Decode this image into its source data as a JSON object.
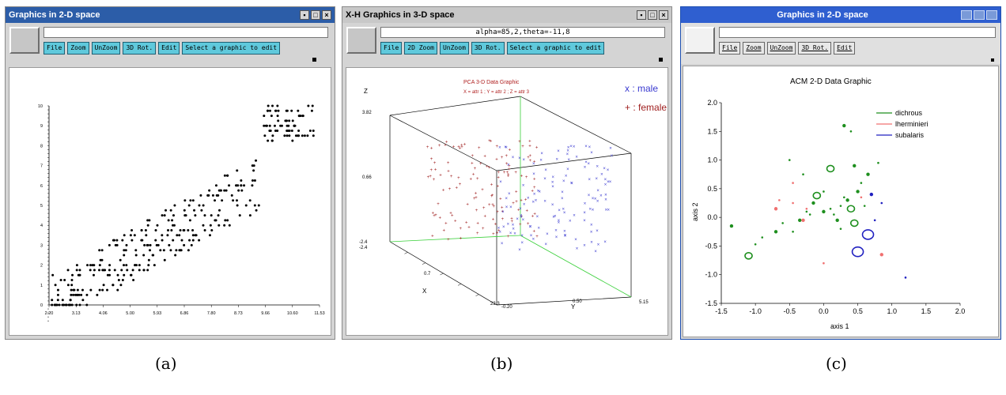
{
  "panel_a": {
    "window_title": "Graphics in 2-D space",
    "buttons": [
      "File",
      "Zoom",
      "UnZoom",
      "3D Rot.",
      "Edit",
      "Select a graphic to edit"
    ],
    "chart_data": {
      "type": "scatter",
      "x_ticks": [
        "2.20",
        "3.13",
        "4.06",
        "5.00",
        "5.93",
        "6.86",
        "7.80",
        "8.73",
        "9.66",
        "10.60",
        "11.53"
      ],
      "y_ticks": [
        "0",
        "1",
        "2",
        "3",
        "4",
        "5",
        "6",
        "7",
        "8",
        "9",
        "10"
      ],
      "xlim": [
        2.2,
        11.53
      ],
      "ylim": [
        0,
        10
      ]
    }
  },
  "panel_b": {
    "window_title": "X-H Graphics in 3-D space",
    "field_text": "alpha=85,2,theta=-11,8",
    "buttons": [
      "File",
      "2D Zoom",
      "UnZoom",
      "3D Rot.",
      "Select a graphic to edit"
    ],
    "chart_data": {
      "type": "scatter",
      "title": "PCA 3-D Data Graphic",
      "subtitle": "X = attr 1 ; Y = attr 2 ; Z = attr 3",
      "legend": [
        {
          "label": "x : male",
          "color": "#3a3ad0"
        },
        {
          "label": "+ : female",
          "color": "#a02020"
        }
      ],
      "z_axis_label": "Z",
      "x_axis_label": "X",
      "y_axis_label": "Y",
      "tick_labels": [
        "3.82",
        "0.66",
        "-2.4",
        "-2.4",
        "0.7",
        "23.3",
        "-0.20",
        "0.50",
        "5.15"
      ]
    }
  },
  "panel_c": {
    "window_title": "Graphics in 2-D space",
    "buttons": [
      "File",
      "Zoom",
      "UnZoom",
      "3D Rot.",
      "Edit"
    ],
    "chart_data": {
      "type": "scatter",
      "title": "ACM 2-D Data Graphic",
      "xlabel": "axis 1",
      "ylabel": "axis 2",
      "xlim": [
        -1.5,
        2.0
      ],
      "ylim": [
        -1.5,
        2.0
      ],
      "x_ticks": [
        "-1.5",
        "-1.0",
        "-0.5",
        "0.0",
        "0.5",
        "1.0",
        "1.5",
        "2.0"
      ],
      "y_ticks": [
        "2.0",
        "1.5",
        "1.0",
        "0.5",
        "0.0",
        "-0.5",
        "-1.0",
        "-1.5"
      ],
      "legend": [
        {
          "label": "dichrous",
          "color": "#1e8f1e"
        },
        {
          "label": "lherminieri",
          "color": "#f07070"
        },
        {
          "label": "subalaris",
          "color": "#2020c0"
        }
      ],
      "series": [
        {
          "name": "dichrous",
          "points": [
            [
              -1.1,
              -0.67
            ],
            [
              -1.0,
              -0.47
            ],
            [
              -0.9,
              -0.35
            ],
            [
              -0.7,
              -0.25
            ],
            [
              -0.6,
              -0.1
            ],
            [
              -0.45,
              -0.25
            ],
            [
              -0.35,
              -0.05
            ],
            [
              -0.25,
              0.1
            ],
            [
              -0.2,
              0.05
            ],
            [
              -0.15,
              0.25
            ],
            [
              -0.1,
              0.38
            ],
            [
              0.0,
              0.45
            ],
            [
              0.0,
              0.1
            ],
            [
              0.1,
              0.15
            ],
            [
              0.15,
              0.05
            ],
            [
              0.2,
              -0.05
            ],
            [
              0.25,
              0.2
            ],
            [
              0.3,
              0.35
            ],
            [
              0.35,
              0.3
            ],
            [
              0.4,
              0.15
            ],
            [
              0.45,
              -0.1
            ],
            [
              0.5,
              0.45
            ],
            [
              0.55,
              0.6
            ],
            [
              0.6,
              0.2
            ],
            [
              0.3,
              1.6
            ],
            [
              0.4,
              1.5
            ],
            [
              0.1,
              0.85
            ],
            [
              0.45,
              0.9
            ],
            [
              -0.5,
              1.0
            ],
            [
              -0.3,
              0.75
            ],
            [
              0.65,
              0.75
            ],
            [
              0.8,
              0.95
            ],
            [
              0.25,
              -0.2
            ],
            [
              -1.35,
              -0.15
            ]
          ]
        },
        {
          "name": "lherminieri",
          "points": [
            [
              -0.7,
              0.15
            ],
            [
              -0.65,
              0.3
            ],
            [
              -0.45,
              0.25
            ],
            [
              -0.3,
              -0.05
            ],
            [
              -0.25,
              0.15
            ],
            [
              0.0,
              -0.8
            ],
            [
              0.85,
              -0.65
            ],
            [
              0.55,
              0.35
            ],
            [
              -0.45,
              0.6
            ]
          ]
        },
        {
          "name": "subalaris",
          "points": [
            [
              0.65,
              -0.3
            ],
            [
              0.5,
              -0.6
            ],
            [
              0.85,
              0.25
            ],
            [
              0.7,
              0.4
            ],
            [
              1.2,
              -1.05
            ],
            [
              0.75,
              -0.05
            ]
          ]
        }
      ]
    }
  },
  "captions": [
    "(a)",
    "(b)",
    "(c)"
  ]
}
